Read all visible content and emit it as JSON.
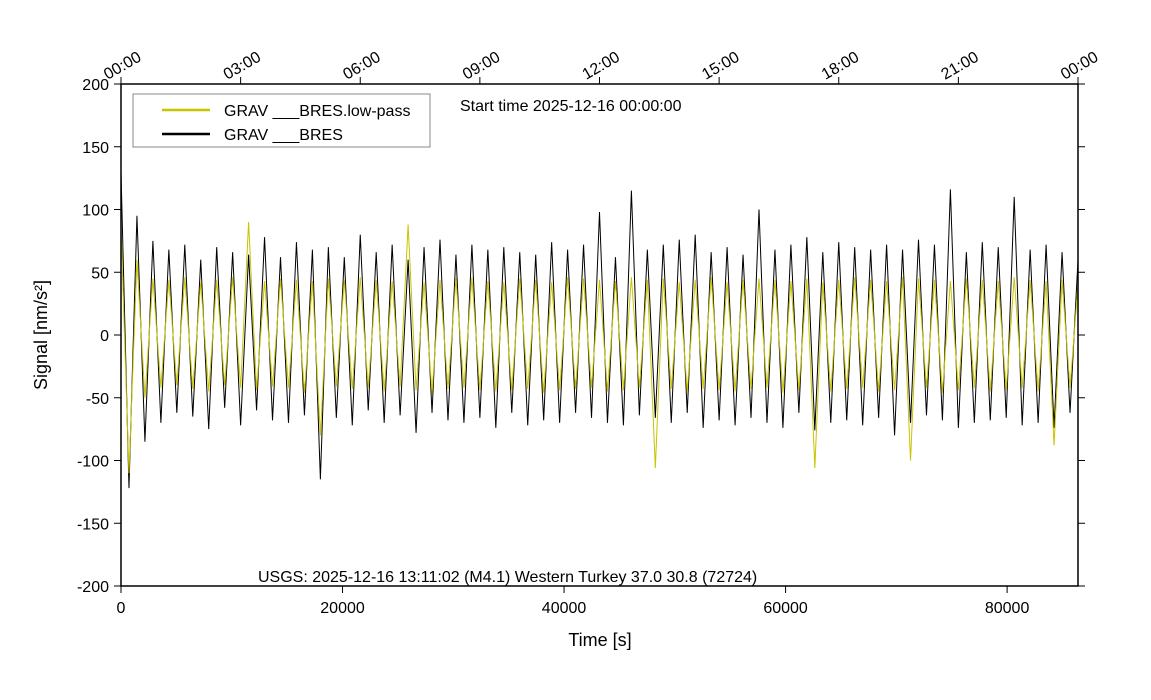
{
  "chart_data": {
    "type": "line",
    "annotations": [
      "Start time 2025-12-16 00:00:00",
      "USGS: 2025-12-16 13:11:02 (M4.1) Western Turkey 37.0 30.8 (72724)"
    ],
    "xlabel": "Time [s]",
    "ylabel": "Signal [nm/s²]",
    "xlim": [
      0,
      86400
    ],
    "ylim": [
      -200,
      200
    ],
    "xticks": [
      0,
      20000,
      40000,
      60000,
      80000
    ],
    "yticks": [
      -200,
      -150,
      -100,
      -50,
      0,
      50,
      100,
      150,
      200
    ],
    "x2ticks": [
      {
        "value": 0,
        "label": "00:00"
      },
      {
        "value": 10800,
        "label": "03:00"
      },
      {
        "value": 21600,
        "label": "06:00"
      },
      {
        "value": 32400,
        "label": "09:00"
      },
      {
        "value": 43200,
        "label": "12:00"
      },
      {
        "value": 54000,
        "label": "15:00"
      },
      {
        "value": 64800,
        "label": "18:00"
      },
      {
        "value": 75600,
        "label": "21:00"
      },
      {
        "value": 86400,
        "label": "00:00"
      }
    ],
    "legend": "upper left",
    "x": [
      0,
      720,
      1440,
      2160,
      2880,
      3600,
      4320,
      5040,
      5760,
      6480,
      7200,
      7920,
      8640,
      9360,
      10080,
      10800,
      11520,
      12240,
      12960,
      13680,
      14400,
      15120,
      15840,
      16560,
      17280,
      18000,
      18720,
      19440,
      20160,
      20880,
      21600,
      22320,
      23040,
      23760,
      24480,
      25200,
      25920,
      26640,
      27360,
      28080,
      28800,
      29520,
      30240,
      30960,
      31680,
      32400,
      33120,
      33840,
      34560,
      35280,
      36000,
      36720,
      37440,
      38160,
      38880,
      39600,
      40320,
      41040,
      41760,
      42480,
      43200,
      43920,
      44640,
      45360,
      46080,
      46800,
      47520,
      48240,
      48960,
      49680,
      50400,
      51120,
      51840,
      52560,
      53280,
      54000,
      54720,
      55440,
      56160,
      56880,
      57600,
      58320,
      59040,
      59760,
      60480,
      61200,
      61920,
      62640,
      63360,
      64080,
      64800,
      65520,
      66240,
      66960,
      67680,
      68400,
      69120,
      69840,
      70560,
      71280,
      72000,
      72720,
      73440,
      74160,
      74880,
      75600,
      76320,
      77040,
      77760,
      78480,
      79200,
      79920,
      80640,
      81360,
      82080,
      82800,
      83520,
      84240,
      84960,
      85680,
      86400
    ],
    "series": [
      {
        "name": "GRAV ___BRES.low-pass",
        "color": "#c8c400",
        "values": [
          85,
          -110,
          60,
          -50,
          45,
          -42,
          44,
          -40,
          46,
          -43,
          42,
          -45,
          44,
          -40,
          46,
          -42,
          90,
          -44,
          43,
          -41,
          45,
          -42,
          44,
          -46,
          43,
          -80,
          45,
          -41,
          44,
          -43,
          46,
          -42,
          44,
          -45,
          43,
          -41,
          88,
          -44,
          42,
          -46,
          44,
          -43,
          45,
          -42,
          46,
          -44,
          43,
          -45,
          42,
          -44,
          45,
          -43,
          44,
          -46,
          42,
          -44,
          46,
          -43,
          45,
          -42,
          44,
          -45,
          43,
          -44,
          46,
          -42,
          44,
          -106,
          45,
          -43,
          42,
          -45,
          44,
          -43,
          46,
          -44,
          42,
          -45,
          44,
          -43,
          45,
          -42,
          44,
          -46,
          43,
          -44,
          45,
          -106,
          42,
          -45,
          44,
          -43,
          46,
          -42,
          44,
          -45,
          43,
          -44,
          46,
          -100,
          45,
          -42,
          44,
          -46,
          43,
          -44,
          45,
          -42,
          44,
          -45,
          43,
          -44,
          46,
          -42,
          44,
          -45,
          43,
          -88,
          44,
          -42,
          40
        ]
      },
      {
        "name": "GRAV ___BRES",
        "color": "#000000",
        "values": [
          130,
          -122,
          95,
          -85,
          75,
          -70,
          68,
          -62,
          72,
          -65,
          60,
          -75,
          70,
          -58,
          66,
          -72,
          64,
          -60,
          78,
          -68,
          62,
          -70,
          74,
          -64,
          68,
          -115,
          70,
          -66,
          62,
          -72,
          80,
          -60,
          66,
          -70,
          72,
          -64,
          60,
          -78,
          70,
          -62,
          76,
          -68,
          64,
          -70,
          72,
          -66,
          68,
          -74,
          70,
          -62,
          66,
          -72,
          64,
          -68,
          74,
          -70,
          68,
          -62,
          72,
          -66,
          98,
          -70,
          62,
          -72,
          115,
          -64,
          68,
          -66,
          72,
          -70,
          76,
          -62,
          80,
          -74,
          66,
          -68,
          70,
          -72,
          64,
          -66,
          100,
          -70,
          68,
          -74,
          72,
          -62,
          78,
          -76,
          66,
          -70,
          74,
          -68,
          70,
          -72,
          68,
          -66,
          72,
          -80,
          68,
          -70,
          76,
          -64,
          72,
          -68,
          116,
          -74,
          66,
          -70,
          74,
          -68,
          70,
          -66,
          110,
          -72,
          68,
          -70,
          72,
          -74,
          66,
          -62,
          60
        ]
      }
    ]
  }
}
